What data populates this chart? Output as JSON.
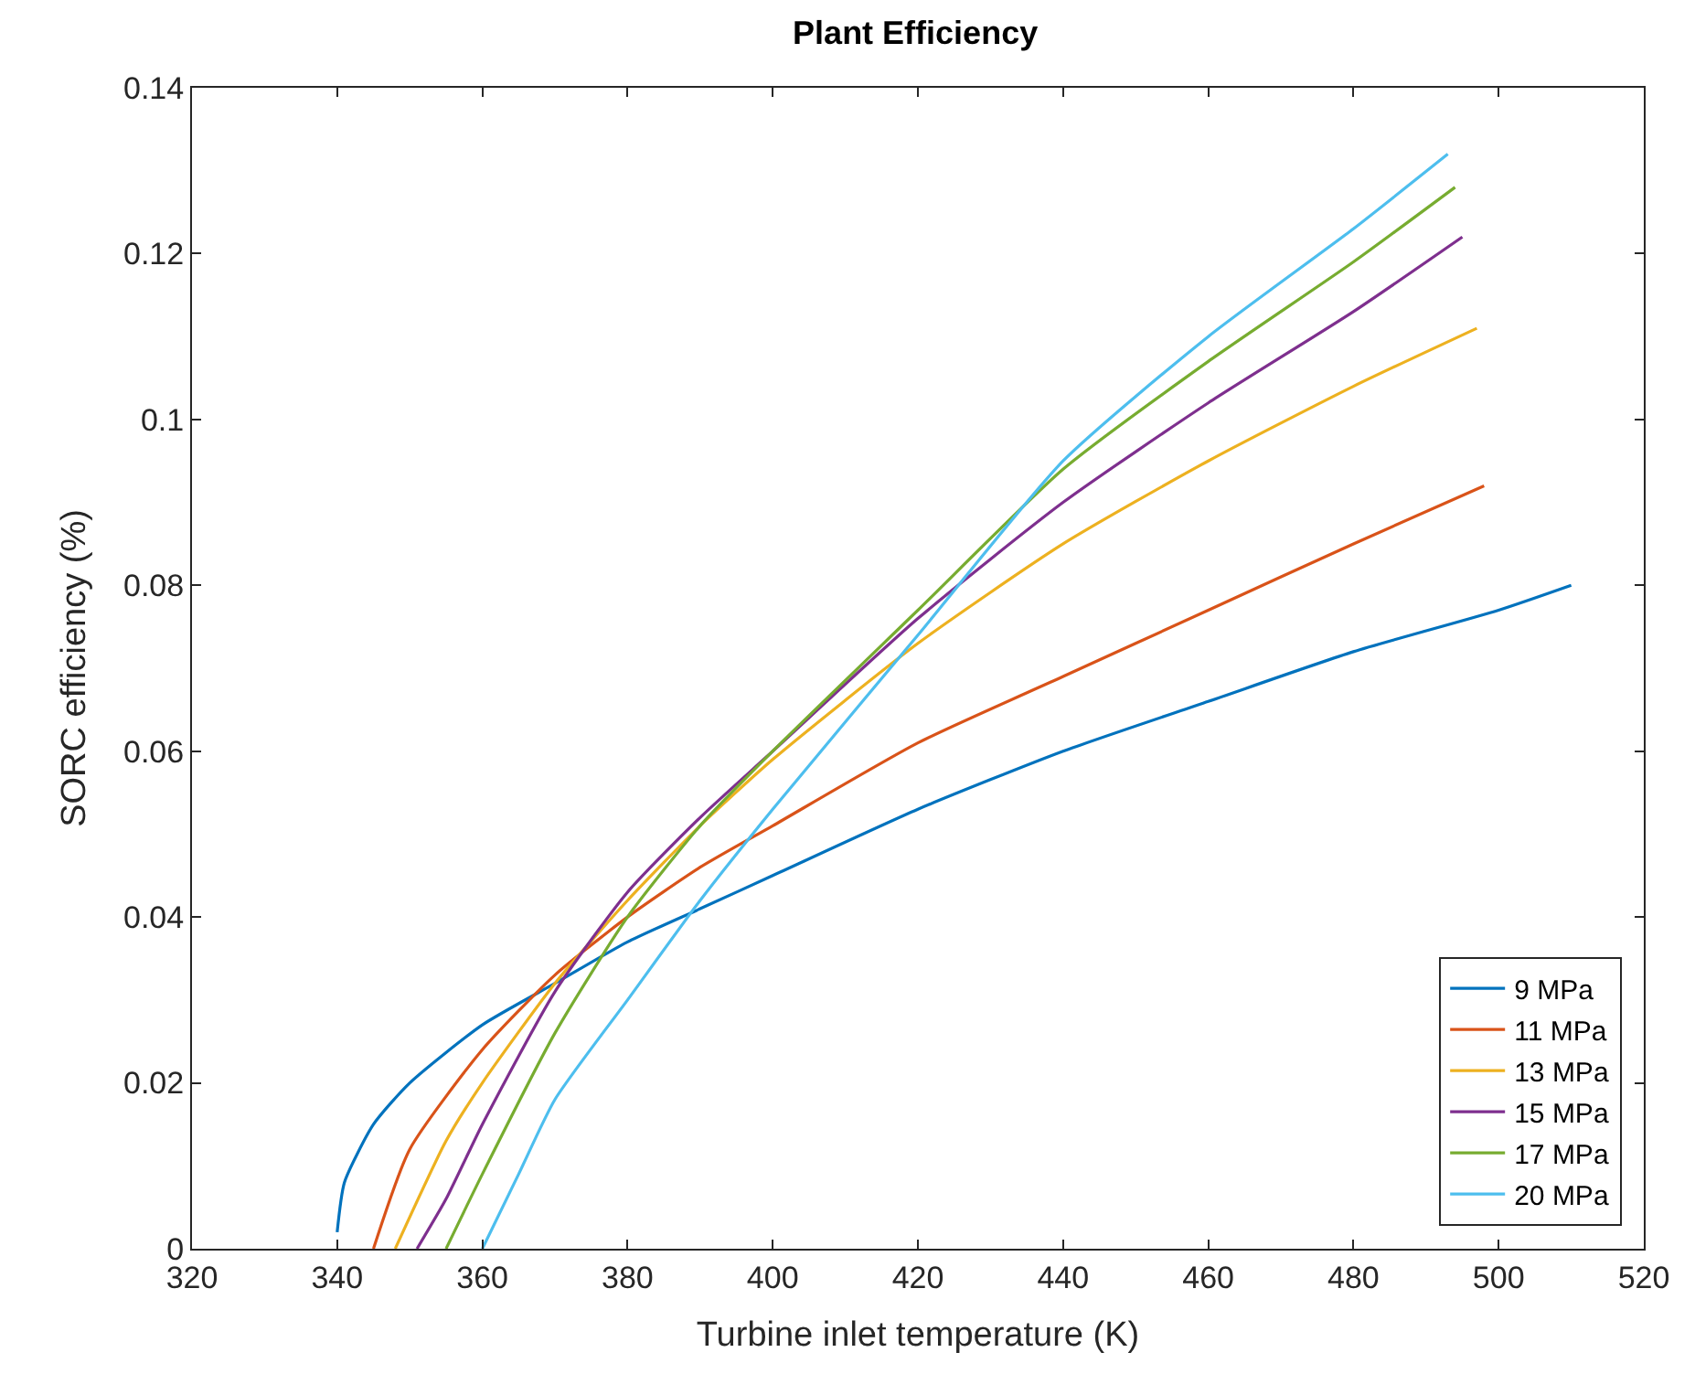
{
  "chart_data": {
    "type": "line",
    "title": "Plant Efficiency",
    "xlabel": "Turbine inlet temperature (K)",
    "ylabel": "SORC efficiency (%)",
    "xlim": [
      320,
      520
    ],
    "xticks": [
      320,
      340,
      360,
      380,
      400,
      420,
      440,
      460,
      480,
      500,
      520
    ],
    "ylim": [
      0,
      0.14
    ],
    "yticks": [
      0,
      0.02,
      0.04,
      0.06,
      0.08,
      0.1,
      0.12,
      0.14
    ],
    "legend": "bottom right",
    "marker": "none",
    "line_style": "solid",
    "series": [
      {
        "name": "9 MPa",
        "color": "#0072bd",
        "x": [
          340,
          341,
          345,
          350,
          360,
          370,
          380,
          390,
          400,
          420,
          440,
          460,
          480,
          500,
          510
        ],
        "values": [
          0.002,
          0.008,
          0.015,
          0.02,
          0.027,
          0.032,
          0.037,
          0.041,
          0.045,
          0.053,
          0.06,
          0.066,
          0.072,
          0.077,
          0.08
        ]
      },
      {
        "name": "11 MPa",
        "color": "#d95319",
        "x": [
          345,
          350,
          360,
          370,
          380,
          390,
          400,
          420,
          440,
          460,
          480,
          498
        ],
        "values": [
          0,
          0.012,
          0.024,
          0.033,
          0.04,
          0.046,
          0.051,
          0.061,
          0.069,
          0.077,
          0.085,
          0.092
        ]
      },
      {
        "name": "13 MPa",
        "color": "#edb120",
        "x": [
          348,
          355,
          360,
          370,
          380,
          390,
          400,
          420,
          440,
          460,
          480,
          497
        ],
        "values": [
          0,
          0.013,
          0.02,
          0.032,
          0.042,
          0.051,
          0.059,
          0.073,
          0.085,
          0.095,
          0.104,
          0.111
        ]
      },
      {
        "name": "15 MPa",
        "color": "#7e2f8e",
        "x": [
          351,
          355,
          360,
          370,
          380,
          390,
          400,
          420,
          440,
          460,
          480,
          495
        ],
        "values": [
          0,
          0.006,
          0.015,
          0.031,
          0.043,
          0.052,
          0.06,
          0.076,
          0.09,
          0.102,
          0.113,
          0.122
        ]
      },
      {
        "name": "17 MPa",
        "color": "#77ac30",
        "x": [
          355,
          360,
          370,
          380,
          390,
          400,
          420,
          440,
          460,
          480,
          494
        ],
        "values": [
          0,
          0.009,
          0.026,
          0.04,
          0.051,
          0.06,
          0.077,
          0.094,
          0.107,
          0.119,
          0.128
        ]
      },
      {
        "name": "20 MPa",
        "color": "#4dbeee",
        "x": [
          360,
          365,
          370,
          380,
          390,
          400,
          420,
          440,
          460,
          480,
          493
        ],
        "values": [
          0,
          0.009,
          0.018,
          0.03,
          0.042,
          0.053,
          0.074,
          0.095,
          0.11,
          0.123,
          0.132
        ]
      }
    ]
  }
}
